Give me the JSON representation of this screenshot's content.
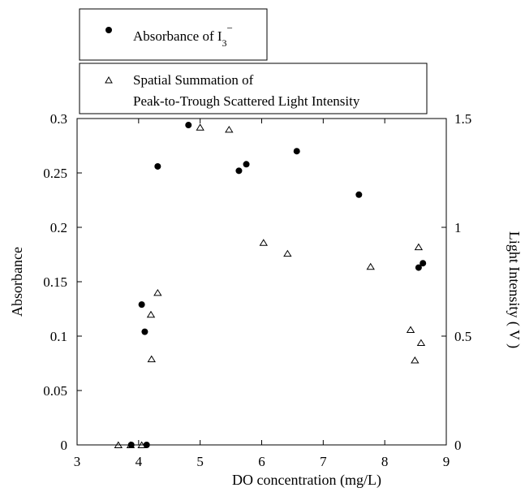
{
  "chart_data": {
    "type": "scatter",
    "xlabel": "DO concentration  (mg/L)",
    "ylabel_left": "Absorbance",
    "ylabel_right": "Light Intensity  ( V )",
    "xlim": [
      3,
      9
    ],
    "ylim_left": [
      0,
      0.3
    ],
    "ylim_right": [
      0,
      1.5
    ],
    "x_ticks": [
      "3",
      "4",
      "5",
      "6",
      "7",
      "8",
      "9"
    ],
    "y_left_ticks": [
      "0",
      "0.05",
      "0.1",
      "0.15",
      "0.2",
      "0.25",
      "0.3"
    ],
    "y_right_ticks": [
      "0",
      "0.5",
      "1",
      "1.5"
    ],
    "legend": {
      "absorbance_label": "Absorbance of I",
      "absorbance_sub": "3",
      "absorbance_sup": "−",
      "light_label_line1": "Spatial Summation of",
      "light_label_line2": "Peak-to-Trough Scattered Light Intensity"
    },
    "series": [
      {
        "marker": "filled-circle",
        "axis": "left",
        "points": [
          [
            3.88,
            0.0
          ],
          [
            4.13,
            0.0
          ],
          [
            4.05,
            0.129
          ],
          [
            4.1,
            0.104
          ],
          [
            4.31,
            0.256
          ],
          [
            4.81,
            0.294
          ],
          [
            5.63,
            0.252
          ],
          [
            5.75,
            0.258
          ],
          [
            6.57,
            0.27
          ],
          [
            7.58,
            0.23
          ],
          [
            8.55,
            0.163
          ],
          [
            8.62,
            0.167
          ]
        ]
      },
      {
        "marker": "open-triangle",
        "axis": "right",
        "points": [
          [
            3.67,
            0.0
          ],
          [
            3.87,
            0.0
          ],
          [
            4.05,
            0.0
          ],
          [
            4.2,
            0.6
          ],
          [
            4.21,
            0.395
          ],
          [
            4.31,
            0.7
          ],
          [
            5.0,
            1.46
          ],
          [
            5.47,
            1.45
          ],
          [
            6.03,
            0.93
          ],
          [
            6.42,
            0.88
          ],
          [
            7.77,
            0.82
          ],
          [
            8.42,
            0.53
          ],
          [
            8.49,
            0.39
          ],
          [
            8.55,
            0.91
          ],
          [
            8.59,
            0.47
          ]
        ]
      }
    ]
  }
}
